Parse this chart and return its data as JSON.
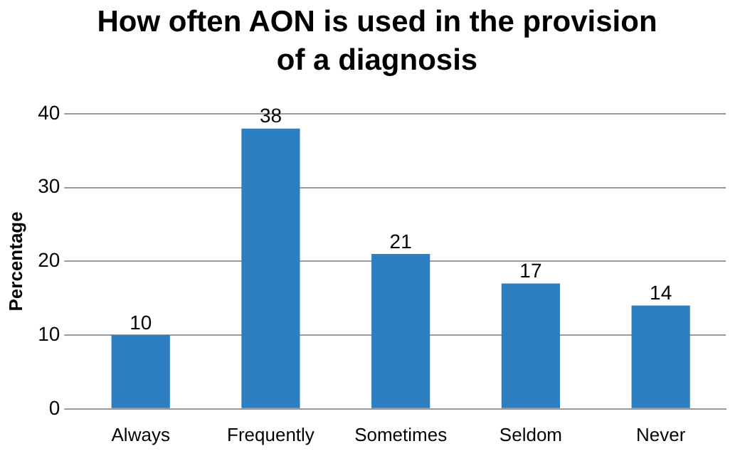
{
  "chart_data": {
    "type": "bar",
    "title": "How often AON is used in the provision of a diagnosis",
    "ylabel": "Percentage",
    "categories": [
      "Always",
      "Frequently",
      "Sometimes",
      "Seldom",
      "Never"
    ],
    "values": [
      10,
      38,
      21,
      17,
      14
    ],
    "color": "#2e7fc2",
    "ylim": [
      0,
      40
    ],
    "yticks": [
      0,
      10,
      20,
      30,
      40
    ],
    "grid": "y",
    "data_labels": true
  }
}
